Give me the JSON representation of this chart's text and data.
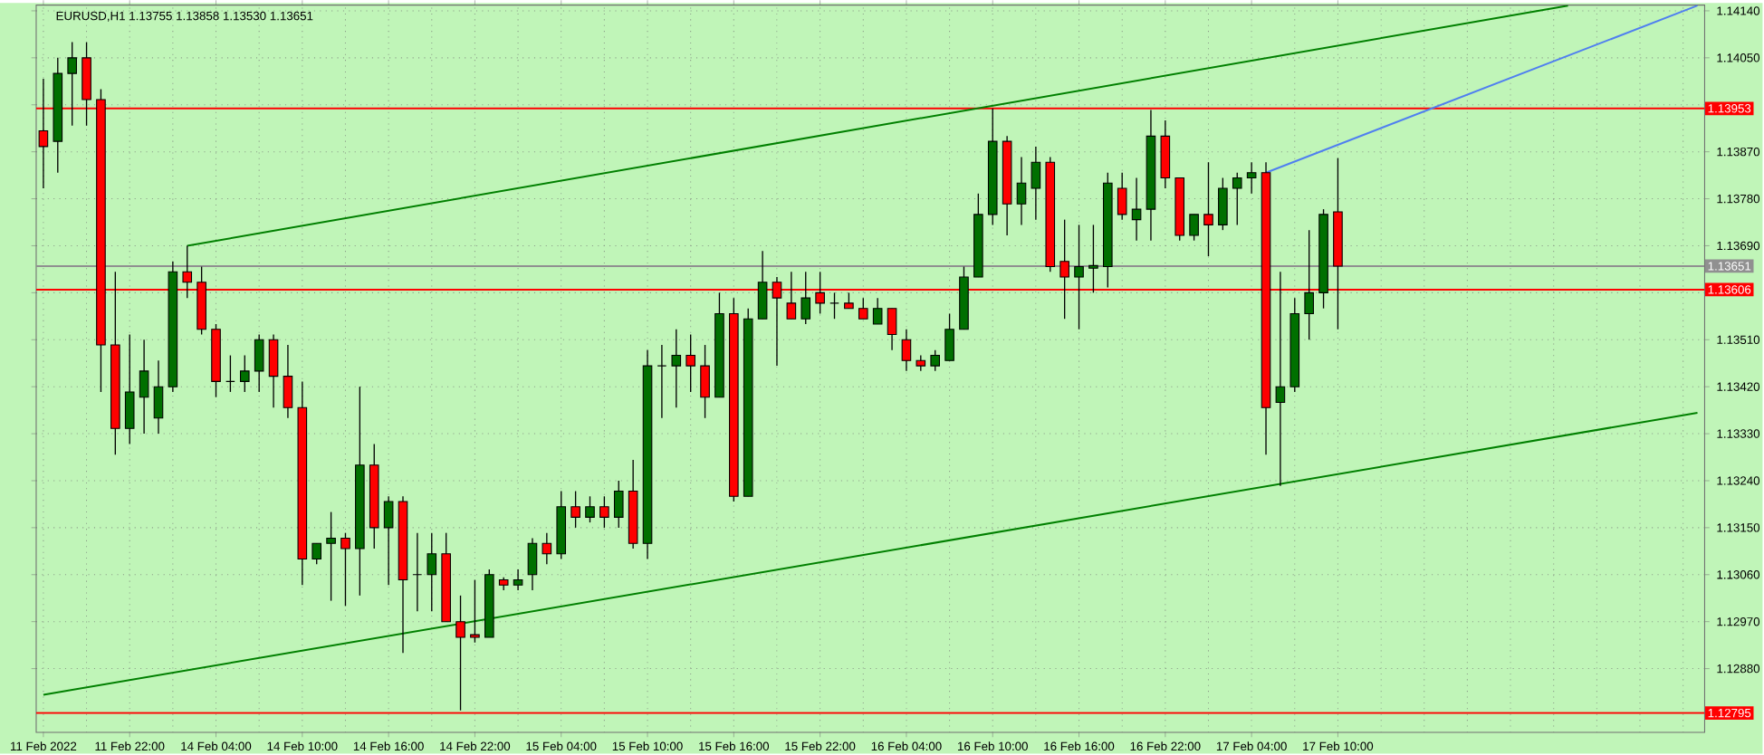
{
  "chart_data": {
    "type": "candlestick",
    "title": "EURUSD,H1  1.13755 1.13858 1.13530 1.13651",
    "categories": [
      "11 Feb 2022",
      null,
      null,
      null,
      null,
      null,
      "11 Feb 22:00",
      null,
      null,
      null,
      null,
      null,
      "14 Feb 04:00",
      null,
      null,
      null,
      null,
      null,
      "14 Feb 10:00",
      null,
      null,
      null,
      null,
      null,
      "14 Feb 16:00",
      null,
      null,
      null,
      null,
      null,
      "14 Feb 22:00",
      null,
      null,
      null,
      null,
      null,
      "15 Feb 04:00",
      null,
      null,
      null,
      null,
      null,
      "15 Feb 10:00",
      null,
      null,
      null,
      null,
      null,
      "15 Feb 16:00",
      null,
      null,
      null,
      null,
      null,
      "15 Feb 22:00",
      null,
      null,
      null,
      null,
      null,
      "16 Feb 04:00",
      null,
      null,
      null,
      null,
      null,
      "16 Feb 10:00",
      null,
      null,
      null,
      null,
      null,
      "16 Feb 16:00",
      null,
      null,
      null,
      null,
      null,
      "16 Feb 22:00",
      null,
      null,
      null,
      null,
      null,
      "17 Feb 04:00",
      null,
      null,
      null,
      null,
      null,
      "17 Feb 10:00",
      null,
      null,
      null,
      null,
      null,
      null,
      null,
      null,
      null,
      null,
      null,
      null,
      null,
      null,
      null,
      null,
      null,
      null,
      null,
      null,
      null,
      null,
      null,
      null,
      null
    ],
    "ohlc": [
      [
        1.1391,
        1.1401,
        1.138,
        1.1388
      ],
      [
        1.1389,
        1.1405,
        1.1383,
        1.1402
      ],
      [
        1.1402,
        1.1408,
        1.1392,
        1.1405
      ],
      [
        1.1405,
        1.1408,
        1.1392,
        1.1397
      ],
      [
        1.1397,
        1.1399,
        1.1341,
        1.135
      ],
      [
        1.135,
        1.1364,
        1.1329,
        1.1334
      ],
      [
        1.1334,
        1.1352,
        1.1331,
        1.1341
      ],
      [
        1.134,
        1.1351,
        1.1333,
        1.1345
      ],
      [
        1.1336,
        1.1347,
        1.1333,
        1.1342
      ],
      [
        1.1342,
        1.1366,
        1.1341,
        1.1364
      ],
      [
        1.1364,
        1.1369,
        1.1359,
        1.1362
      ],
      [
        1.1362,
        1.1365,
        1.1352,
        1.1353
      ],
      [
        1.1353,
        1.1354,
        1.134,
        1.1343
      ],
      [
        1.1343,
        1.1348,
        1.1341,
        1.1343
      ],
      [
        1.1343,
        1.1348,
        1.1341,
        1.1345
      ],
      [
        1.1345,
        1.1352,
        1.1341,
        1.1351
      ],
      [
        1.1351,
        1.1352,
        1.1338,
        1.1344
      ],
      [
        1.1344,
        1.135,
        1.1336,
        1.1338
      ],
      [
        1.1338,
        1.1343,
        1.1304,
        1.1309
      ],
      [
        1.1309,
        1.1312,
        1.1308,
        1.1312
      ],
      [
        1.1312,
        1.1318,
        1.1301,
        1.1313
      ],
      [
        1.1313,
        1.1314,
        1.13,
        1.1311
      ],
      [
        1.1311,
        1.1342,
        1.1302,
        1.1327
      ],
      [
        1.1327,
        1.1331,
        1.1311,
        1.1315
      ],
      [
        1.1315,
        1.1321,
        1.1304,
        1.132
      ],
      [
        1.132,
        1.1321,
        1.1291,
        1.1305
      ],
      [
        1.1306,
        1.1314,
        1.1299,
        1.1306
      ],
      [
        1.1306,
        1.1314,
        1.1299,
        1.131
      ],
      [
        1.131,
        1.1314,
        1.1297,
        1.1297
      ],
      [
        1.1297,
        1.1302,
        1.128,
        1.1294
      ],
      [
        1.12945,
        1.1305,
        1.1293,
        1.1294
      ],
      [
        1.1294,
        1.1307,
        1.1294,
        1.1306
      ],
      [
        1.1305,
        1.13055,
        1.1303,
        1.1304
      ],
      [
        1.1304,
        1.1307,
        1.1303,
        1.1305
      ],
      [
        1.1306,
        1.1313,
        1.1303,
        1.1312
      ],
      [
        1.1312,
        1.1314,
        1.1308,
        1.131
      ],
      [
        1.131,
        1.1322,
        1.1309,
        1.1319
      ],
      [
        1.1319,
        1.1322,
        1.1315,
        1.1317
      ],
      [
        1.1317,
        1.1321,
        1.1316,
        1.1319
      ],
      [
        1.1319,
        1.1321,
        1.1315,
        1.1317
      ],
      [
        1.1317,
        1.1324,
        1.1315,
        1.1322
      ],
      [
        1.1322,
        1.1328,
        1.1311,
        1.1312
      ],
      [
        1.1312,
        1.1349,
        1.1309,
        1.1346
      ],
      [
        1.1346,
        1.135,
        1.1336,
        1.1346
      ],
      [
        1.1346,
        1.1353,
        1.1338,
        1.1348
      ],
      [
        1.1348,
        1.1352,
        1.1341,
        1.1346
      ],
      [
        1.1346,
        1.135,
        1.1336,
        1.134
      ],
      [
        1.134,
        1.136,
        1.134,
        1.1356
      ],
      [
        1.1356,
        1.1359,
        1.132,
        1.1321
      ],
      [
        1.1321,
        1.1357,
        1.1321,
        1.1355
      ],
      [
        1.1355,
        1.1368,
        1.1355,
        1.1362
      ],
      [
        1.1362,
        1.1363,
        1.1346,
        1.1359
      ],
      [
        1.1358,
        1.1364,
        1.1355,
        1.1355
      ],
      [
        1.1355,
        1.1364,
        1.1354,
        1.1359
      ],
      [
        1.136,
        1.1364,
        1.1356,
        1.1358
      ],
      [
        1.1358,
        1.136,
        1.1355,
        1.1358
      ],
      [
        1.1358,
        1.136,
        1.1357,
        1.1357
      ],
      [
        1.1357,
        1.1359,
        1.1355,
        1.1355
      ],
      [
        1.1354,
        1.1359,
        1.1354,
        1.1357
      ],
      [
        1.1357,
        1.1357,
        1.1349,
        1.1352
      ],
      [
        1.1351,
        1.1353,
        1.1345,
        1.1347
      ],
      [
        1.1347,
        1.1348,
        1.1345,
        1.1346
      ],
      [
        1.1346,
        1.1349,
        1.1345,
        1.1348
      ],
      [
        1.1347,
        1.1356,
        1.1347,
        1.1353
      ],
      [
        1.1353,
        1.1365,
        1.1353,
        1.1363
      ],
      [
        1.1363,
        1.1379,
        1.1363,
        1.1375
      ],
      [
        1.1375,
        1.13953,
        1.1373,
        1.1389
      ],
      [
        1.1389,
        1.139,
        1.1371,
        1.1377
      ],
      [
        1.1377,
        1.1386,
        1.1373,
        1.1381
      ],
      [
        1.138,
        1.1388,
        1.1374,
        1.1385
      ],
      [
        1.1385,
        1.1386,
        1.1364,
        1.1365
      ],
      [
        1.1366,
        1.1374,
        1.1355,
        1.1363
      ],
      [
        1.1363,
        1.1373,
        1.1353,
        1.1365
      ],
      [
        1.13647,
        1.1373,
        1.136,
        1.13652
      ],
      [
        1.1365,
        1.1383,
        1.1361,
        1.1381
      ],
      [
        1.138,
        1.1383,
        1.1374,
        1.1375
      ],
      [
        1.1374,
        1.1382,
        1.137,
        1.1376
      ],
      [
        1.1376,
        1.1395,
        1.137,
        1.139
      ],
      [
        1.139,
        1.1393,
        1.138,
        1.1382
      ],
      [
        1.1382,
        1.1382,
        1.137,
        1.1371
      ],
      [
        1.1371,
        1.1375,
        1.137,
        1.1375
      ],
      [
        1.1375,
        1.1385,
        1.1367,
        1.1373
      ],
      [
        1.1373,
        1.1382,
        1.1372,
        1.138
      ],
      [
        1.138,
        1.1383,
        1.1373,
        1.1382
      ],
      [
        1.1382,
        1.1385,
        1.1379,
        1.1383
      ],
      [
        1.1383,
        1.1385,
        1.1329,
        1.1338
      ],
      [
        1.1339,
        1.1364,
        1.1323,
        1.1342
      ],
      [
        1.1342,
        1.1359,
        1.1341,
        1.1356
      ],
      [
        1.1356,
        1.1372,
        1.1351,
        1.136
      ],
      [
        1.136,
        1.1376,
        1.1357,
        1.1375
      ],
      [
        1.13755,
        1.13858,
        1.1353,
        1.13651
      ],
      null,
      null,
      null,
      null,
      null,
      null,
      null,
      null,
      null,
      null,
      null,
      null,
      null,
      null,
      null,
      null,
      null,
      null,
      null,
      null,
      null,
      null,
      null,
      null,
      null
    ],
    "colors": [
      "#ff0000",
      "#007000",
      "#007000",
      "#ff0000",
      "#ff0000",
      "#ff0000",
      "#007000",
      "#007000",
      "#007000",
      "#007000",
      "#ff0000",
      "#ff0000",
      "#ff0000",
      "#000000",
      "#007000",
      "#007000",
      "#ff0000",
      "#ff0000",
      "#ff0000",
      "#007000",
      "#007000",
      "#ff0000",
      "#007000",
      "#ff0000",
      "#007000",
      "#ff0000",
      "#000000",
      "#007000",
      "#ff0000",
      "#ff0000",
      "#ff0000",
      "#007000",
      "#ff0000",
      "#007000",
      "#007000",
      "#ff0000",
      "#007000",
      "#ff0000",
      "#007000",
      "#ff0000",
      "#007000",
      "#ff0000",
      "#007000",
      "#000000",
      "#007000",
      "#ff0000",
      "#ff0000",
      "#007000",
      "#ff0000",
      "#007000",
      "#007000",
      "#ff0000",
      "#ff0000",
      "#007000",
      "#ff0000",
      "#000000",
      "#ff0000",
      "#ff0000",
      "#007000",
      "#ff0000",
      "#ff0000",
      "#ff0000",
      "#007000",
      "#007000",
      "#007000",
      "#007000",
      "#007000",
      "#ff0000",
      "#007000",
      "#007000",
      "#ff0000",
      "#ff0000",
      "#007000",
      "#007000",
      "#007000",
      "#ff0000",
      "#007000",
      "#007000",
      "#ff0000",
      "#ff0000",
      "#007000",
      "#ff0000",
      "#007000",
      "#007000",
      "#007000",
      "#ff0000",
      "#007000",
      "#007000",
      "#007000",
      "#007000",
      "#ff0000",
      null,
      null,
      null,
      null,
      null,
      null,
      null,
      null,
      null,
      null,
      null,
      null,
      null,
      null,
      null,
      null,
      null,
      null,
      null,
      null,
      null,
      null,
      null,
      null,
      null
    ],
    "series": [
      {
        "type": "line",
        "color": "#008000",
        "values": [
          null,
          null,
          null,
          null,
          null,
          null,
          null,
          null,
          null,
          null,
          1.1369,
          null,
          null,
          null,
          null,
          null,
          null,
          null,
          null,
          null,
          null,
          null,
          null,
          null,
          null,
          null,
          null,
          null,
          null,
          null,
          null,
          null,
          null,
          null,
          null,
          null,
          null,
          null,
          null,
          null,
          null,
          null,
          null,
          null,
          null,
          null,
          null,
          null,
          null,
          null,
          null,
          null,
          null,
          null,
          null,
          null,
          null,
          null,
          null,
          null,
          null,
          null,
          null,
          null,
          null,
          null,
          null,
          null,
          null,
          null,
          null,
          null,
          null,
          null,
          null,
          null,
          null,
          null,
          null,
          null,
          null,
          null,
          null,
          null,
          null,
          null,
          null,
          null,
          null,
          null,
          null,
          null,
          null,
          null,
          null,
          null,
          null,
          null,
          null,
          null,
          null,
          null,
          null,
          null,
          null,
          null,
          1.1415,
          null,
          null,
          null,
          null,
          null,
          null,
          null,
          null,
          null
        ]
      },
      {
        "type": "line",
        "color": "#008000",
        "values": [
          1.1283,
          null,
          null,
          null,
          null,
          null,
          null,
          null,
          null,
          null,
          null,
          null,
          null,
          null,
          null,
          null,
          null,
          null,
          null,
          null,
          null,
          null,
          null,
          null,
          null,
          null,
          null,
          null,
          null,
          null,
          null,
          null,
          null,
          null,
          null,
          null,
          null,
          null,
          null,
          null,
          null,
          null,
          null,
          null,
          null,
          null,
          null,
          null,
          null,
          null,
          null,
          null,
          null,
          null,
          null,
          null,
          null,
          null,
          null,
          null,
          null,
          null,
          null,
          null,
          null,
          null,
          null,
          null,
          null,
          null,
          null,
          null,
          null,
          null,
          null,
          null,
          null,
          null,
          null,
          null,
          null,
          null,
          null,
          null,
          null,
          null,
          null,
          null,
          null,
          null,
          null,
          null,
          null,
          null,
          null,
          null,
          null,
          null,
          null,
          null,
          null,
          null,
          null,
          null,
          null,
          null,
          null,
          null,
          null,
          null,
          null,
          null,
          null,
          null,
          null,
          1.1337
        ]
      },
      {
        "type": "line",
        "color": "#4f7ff0",
        "values": [
          null,
          null,
          null,
          null,
          null,
          null,
          null,
          null,
          null,
          null,
          null,
          null,
          null,
          null,
          null,
          null,
          null,
          null,
          null,
          null,
          null,
          null,
          null,
          null,
          null,
          null,
          null,
          null,
          null,
          null,
          null,
          null,
          null,
          null,
          null,
          null,
          null,
          null,
          null,
          null,
          null,
          null,
          null,
          null,
          null,
          null,
          null,
          null,
          null,
          null,
          null,
          null,
          null,
          null,
          null,
          null,
          null,
          null,
          null,
          null,
          null,
          null,
          null,
          null,
          null,
          null,
          null,
          null,
          null,
          null,
          null,
          null,
          null,
          null,
          null,
          null,
          null,
          null,
          null,
          null,
          null,
          null,
          null,
          null,
          null,
          1.1383,
          null,
          null,
          null,
          null,
          null,
          null,
          null,
          null,
          null,
          null,
          null,
          null,
          null,
          null,
          null,
          null,
          null,
          null,
          null,
          null,
          null,
          null,
          null,
          null,
          null,
          null,
          null,
          null,
          null,
          1.1415
        ]
      }
    ],
    "ylim": [
      1.12758,
      1.14151
    ],
    "yticks": [
      {
        "value": 1.1288,
        "label": "1.12880"
      },
      {
        "value": 1.1297,
        "label": "1.12970"
      },
      {
        "value": 1.1306,
        "label": "1.13060"
      },
      {
        "value": 1.1315,
        "label": "1.13150"
      },
      {
        "value": 1.1324,
        "label": "1.13240"
      },
      {
        "value": 1.1333,
        "label": "1.13330"
      },
      {
        "value": 1.1342,
        "label": "1.13420"
      },
      {
        "value": 1.1351,
        "label": "1.13510"
      },
      {
        "value": 1.136,
        "label": null
      },
      {
        "value": 1.1369,
        "label": "1.13690"
      },
      {
        "value": 1.1378,
        "label": "1.13780"
      },
      {
        "value": 1.1387,
        "label": "1.13870"
      },
      {
        "value": 1.1396,
        "label": null
      },
      {
        "value": 1.1405,
        "label": "1.14050"
      },
      {
        "value": 1.1414,
        "label": "1.14140"
      }
    ],
    "grid": true,
    "ref_lines": [
      {
        "axis": "y",
        "value": 1.13953,
        "label": "1.13953",
        "color": "#ff0000"
      },
      {
        "axis": "y",
        "value": 1.13606,
        "label": "1.13606",
        "color": "#ff0000"
      },
      {
        "axis": "y",
        "value": 1.12795,
        "label": "1.12795",
        "color": "#ff0000"
      },
      {
        "axis": "y",
        "value": 1.13651,
        "label": "1.13651",
        "color": "#909090"
      }
    ]
  }
}
